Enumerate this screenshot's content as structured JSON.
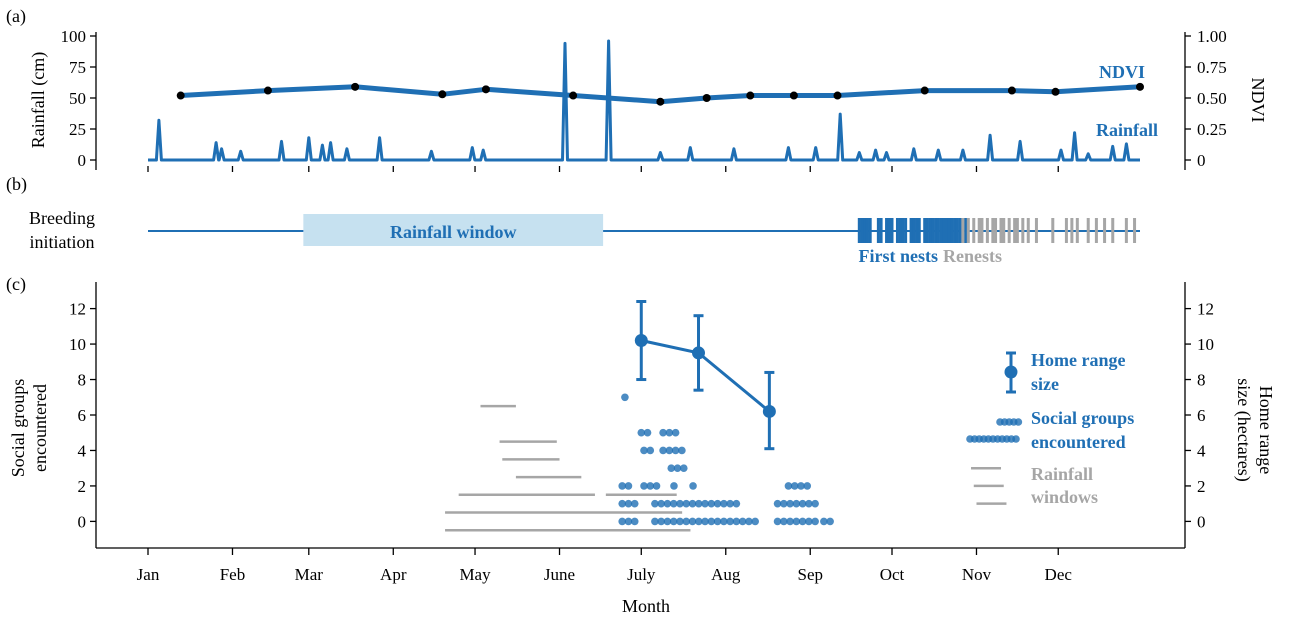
{
  "colors": {
    "blue": "#1f6fb4",
    "blue_dark": "#1a5fa0",
    "gray": "#a6a6a6",
    "window_fill": "#c6e1f0",
    "black": "#000000"
  },
  "panel_labels": {
    "a": "(a)",
    "b": "(b)",
    "c": "(c)"
  },
  "months": [
    "Jan",
    "Feb",
    "Mar",
    "Apr",
    "May",
    "June",
    "July",
    "Aug",
    "Sep",
    "Oct",
    "Nov",
    "Dec"
  ],
  "xlabel": "Month",
  "chart_data": [
    {
      "panel": "a",
      "type": "line",
      "x_unit": "day of year",
      "xlim": [
        1,
        365
      ],
      "y_left": {
        "label": "Rainfall (cm)",
        "ticks": [
          0,
          25,
          50,
          75,
          100
        ],
        "lim": [
          0,
          100
        ]
      },
      "y_right": {
        "label": "NDVI",
        "ticks": [
          "0",
          "0.25",
          "0.50",
          "0.75",
          "1.00"
        ],
        "lim": [
          0,
          1
        ]
      },
      "series": [
        {
          "name": "NDVI",
          "axis": "right",
          "points": [
            [
              13,
              0.52
            ],
            [
              45,
              0.56
            ],
            [
              77,
              0.59
            ],
            [
              109,
              0.53
            ],
            [
              125,
              0.57
            ],
            [
              157,
              0.52
            ],
            [
              189,
              0.47
            ],
            [
              206,
              0.5
            ],
            [
              222,
              0.52
            ],
            [
              238,
              0.52
            ],
            [
              254,
              0.52
            ],
            [
              286,
              0.56
            ],
            [
              318,
              0.56
            ],
            [
              334,
              0.55
            ],
            [
              365,
              0.59
            ]
          ]
        },
        {
          "name": "Rainfall",
          "axis": "left",
          "peaks": [
            [
              5,
              32
            ],
            [
              26,
              14
            ],
            [
              28,
              9
            ],
            [
              35,
              7
            ],
            [
              50,
              15
            ],
            [
              60,
              18
            ],
            [
              65,
              12
            ],
            [
              68,
              14
            ],
            [
              74,
              9
            ],
            [
              86,
              18
            ],
            [
              105,
              7
            ],
            [
              120,
              10
            ],
            [
              124,
              8
            ],
            [
              154,
              94
            ],
            [
              170,
              96
            ],
            [
              189,
              6
            ],
            [
              200,
              10
            ],
            [
              216,
              9
            ],
            [
              236,
              10
            ],
            [
              246,
              10
            ],
            [
              255,
              37
            ],
            [
              262,
              6
            ],
            [
              268,
              8
            ],
            [
              272,
              6
            ],
            [
              282,
              9
            ],
            [
              291,
              8
            ],
            [
              300,
              8
            ],
            [
              310,
              20
            ],
            [
              321,
              15
            ],
            [
              336,
              8
            ],
            [
              341,
              22
            ],
            [
              346,
              5
            ],
            [
              355,
              11
            ],
            [
              360,
              13
            ]
          ]
        }
      ]
    },
    {
      "panel": "b",
      "type": "timeline",
      "row_label_line1": "Breeding",
      "row_label_line2": "initiation",
      "rainfall_window": {
        "label": "Rainfall window",
        "start": 58,
        "end": 168
      },
      "first_nests_label": "First nests",
      "renests_label": "Renests",
      "first_nests": [
        262,
        263,
        264,
        265,
        266,
        269,
        270,
        272,
        273,
        274,
        276,
        277,
        278,
        279,
        281,
        282,
        283,
        284,
        286,
        287,
        288,
        289,
        290,
        291,
        292,
        293,
        294,
        295,
        296,
        297,
        298,
        299,
        301
      ],
      "renests": [
        300,
        302,
        304,
        306,
        307,
        309,
        311,
        312,
        314,
        315,
        317,
        319,
        320,
        322,
        324,
        327,
        333,
        338,
        340,
        342,
        346,
        349,
        352,
        355,
        360,
        363
      ]
    },
    {
      "panel": "c",
      "type": "scatter",
      "y_left": {
        "label_line1": "Social groups",
        "label_line2": "encountered",
        "ticks": [
          0,
          2,
          4,
          6,
          8,
          10,
          12
        ],
        "lim": [
          -1.5,
          13.5
        ]
      },
      "y_right": {
        "label_line1": "Home range",
        "label_line2": "size (hectares)",
        "ticks": [
          0,
          2,
          4,
          6,
          8,
          10,
          12
        ]
      },
      "home_range": {
        "name": "Home range size",
        "points": [
          {
            "x": 182,
            "y": 10.2,
            "low": 8.0,
            "high": 12.4
          },
          {
            "x": 203,
            "y": 9.5,
            "low": 7.4,
            "high": 11.6
          },
          {
            "x": 229,
            "y": 6.2,
            "low": 4.1,
            "high": 8.4
          }
        ]
      },
      "social_groups": {
        "name": "Social groups encountered",
        "counts": {
          "0": [
            [
              175,
              181
            ],
            [
              187,
              226
            ],
            [
              232,
              247
            ],
            [
              249,
              252
            ]
          ],
          "1": [
            [
              175,
              181
            ],
            [
              187,
              217
            ],
            [
              232,
              247
            ]
          ],
          "2": [
            [
              175,
              178
            ],
            [
              183,
              188
            ],
            [
              194,
              196
            ],
            [
              201,
              202
            ],
            [
              236,
              244
            ]
          ],
          "3": [
            [
              193,
              199
            ]
          ],
          "4": [
            [
              183,
              186
            ],
            [
              190,
              198
            ]
          ],
          "5": [
            [
              182,
              186
            ],
            [
              190,
              195
            ]
          ],
          "7": [
            [
              176,
              176
            ]
          ]
        }
      },
      "rainfall_windows": {
        "name": "Rainfall windows",
        "segments": [
          [
            123,
            136,
            6.5
          ],
          [
            130,
            151,
            4.5
          ],
          [
            131,
            152,
            3.5
          ],
          [
            136,
            160,
            2.5
          ],
          [
            115,
            165,
            1.5
          ],
          [
            169,
            195,
            1.5
          ],
          [
            110,
            197,
            0.5
          ],
          [
            115,
            200,
            -0.5
          ],
          [
            110,
            200,
            -0.5
          ],
          [
            303,
            314,
            3.0
          ],
          [
            304,
            315,
            2.0
          ],
          [
            305,
            316,
            1.0
          ]
        ]
      },
      "legend": {
        "home_range_line1": "Home range",
        "home_range_line2": "size",
        "social_line1": "Social groups",
        "social_line2": "encountered",
        "rain_line1": "Rainfall",
        "rain_line2": "windows"
      }
    }
  ]
}
